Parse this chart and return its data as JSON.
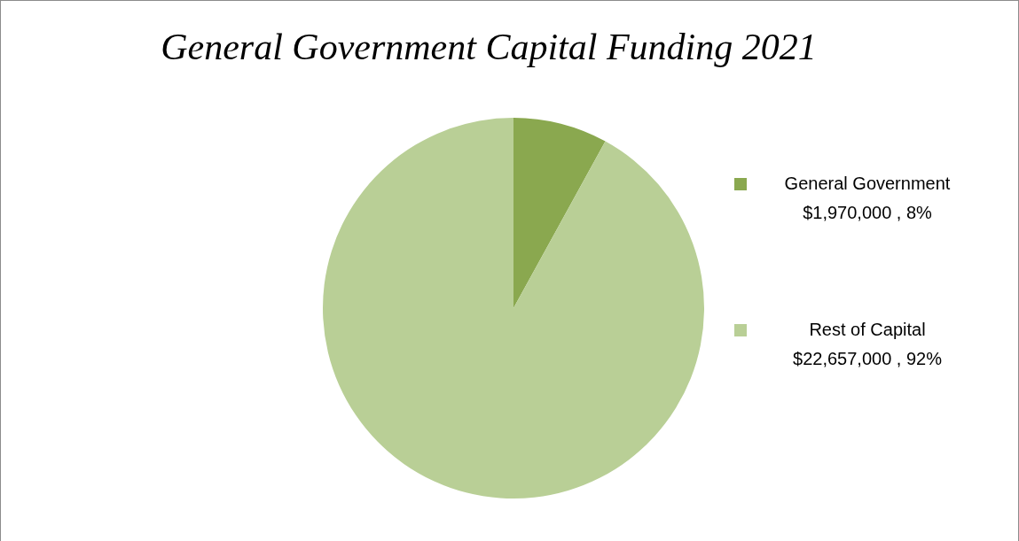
{
  "chart_data": {
    "type": "pie",
    "title": "General Government  Capital Funding 2021",
    "categories": [
      "General Government",
      "Rest of Capital"
    ],
    "values": [
      1970000,
      22657000
    ],
    "value_labels": [
      "$1,970,000 , 8%",
      "$22,657,000 , 92%"
    ],
    "colors": [
      "#8aa84f",
      "#b9cf96"
    ],
    "legend": "right"
  }
}
